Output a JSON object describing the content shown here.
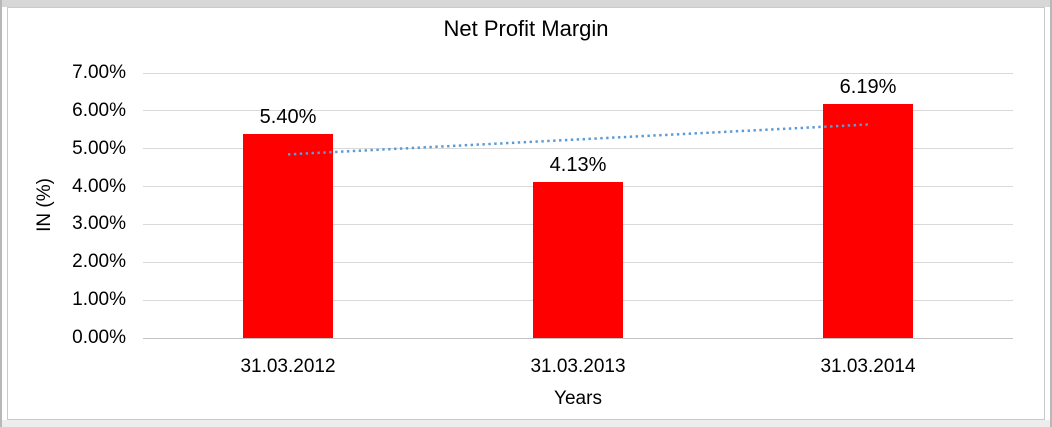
{
  "chart_data": {
    "type": "bar",
    "title": "Net Profit Margin",
    "categories": [
      "31.03.2012",
      "31.03.2013",
      "31.03.2014"
    ],
    "values": [
      5.4,
      4.13,
      6.19
    ],
    "data_labels": [
      "5.40%",
      "4.13%",
      "6.19%"
    ],
    "xlabel": "Years",
    "ylabel": "IN (%)",
    "ylim": [
      0,
      7
    ],
    "ytick_labels": [
      "0.00%",
      "1.00%",
      "2.00%",
      "3.00%",
      "4.00%",
      "5.00%",
      "6.00%",
      "7.00%"
    ],
    "grid": true,
    "legend": false,
    "bar_color": "#ff0000",
    "gridline_color": "#d9d9d9",
    "trendline": {
      "type": "linear",
      "style": "dotted",
      "color": "#5b9bd5",
      "start_value": 4.85,
      "end_value": 5.64
    }
  }
}
